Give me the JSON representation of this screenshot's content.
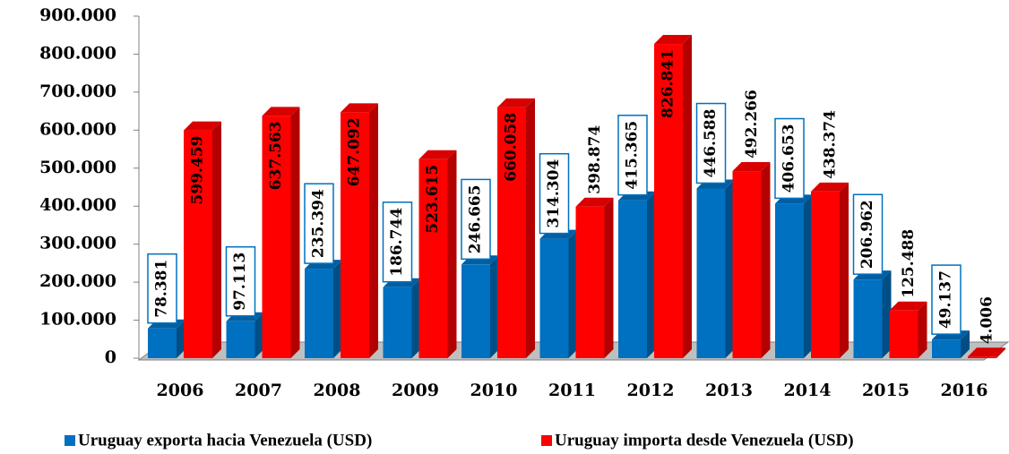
{
  "chart_data": {
    "type": "bar3d",
    "categories": [
      "2006",
      "2007",
      "2008",
      "2009",
      "2010",
      "2011",
      "2012",
      "2013",
      "2014",
      "2015",
      "2016"
    ],
    "series": [
      {
        "name": "Uruguay exporta hacia Venezuela (USD)",
        "color": "#0070c0",
        "values": [
          78381,
          97113,
          235394,
          186744,
          246665,
          314304,
          415365,
          446588,
          406653,
          206962,
          49137
        ],
        "value_labels": [
          "78.381",
          "97.113",
          "235.394",
          "186.744",
          "246.665",
          "314.304",
          "415.365",
          "446.588",
          "406.653",
          "206.962",
          "49.137"
        ]
      },
      {
        "name": "Uruguay importa desde Venezuela (USD)",
        "color": "#ff0000",
        "values": [
          599459,
          637563,
          647092,
          523615,
          660058,
          398874,
          826841,
          492266,
          438374,
          125488,
          4006
        ],
        "value_labels": [
          "599.459",
          "637.563",
          "647.092",
          "523.615",
          "660.058",
          "398.874",
          "826.841",
          "492.266",
          "438.374",
          "125.488",
          "4.006"
        ]
      }
    ],
    "ylim": [
      0,
      900000
    ],
    "yticks": [
      0,
      {
        "value": 100000,
        "label": "100.000"
      },
      {
        "value": 200000,
        "label": "200.000"
      },
      {
        "value": 300000,
        "label": "300.000"
      },
      {
        "value": 400000,
        "label": "400.000"
      },
      {
        "value": 500000,
        "label": "500.000"
      },
      {
        "value": 600000,
        "label": "600.000"
      },
      {
        "value": 700000,
        "label": "700.000"
      },
      {
        "value": 800000,
        "label": "800.000"
      },
      {
        "value": 900000,
        "label": "900.000"
      }
    ]
  }
}
